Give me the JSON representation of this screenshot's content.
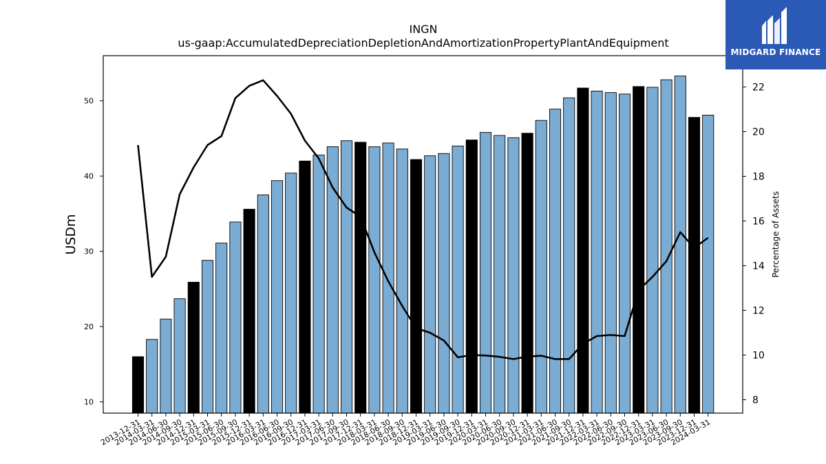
{
  "chart_data": {
    "type": "bar",
    "title": "INGN",
    "subtitle": "us-gaap:AccumulatedDepreciationDepletionAndAmortizationPropertyPlantAndEquipment",
    "ylabel": "USDm",
    "y2label": "Percentage of Assets",
    "ylim": [
      8.5,
      56
    ],
    "y2lim": [
      7.4,
      23.4
    ],
    "yticks": [
      10,
      20,
      30,
      40,
      50
    ],
    "y2ticks": [
      8,
      10,
      12,
      14,
      16,
      18,
      20,
      22
    ],
    "categories": [
      "2013-12-31",
      "2014-03-31",
      "2014-06-30",
      "2014-09-30",
      "2014-12-31",
      "2015-03-31",
      "2015-06-30",
      "2015-09-30",
      "2015-12-31",
      "2016-03-31",
      "2016-06-30",
      "2016-09-30",
      "2016-12-31",
      "2017-03-31",
      "2017-06-30",
      "2017-09-30",
      "2017-12-31",
      "2018-03-31",
      "2018-06-30",
      "2018-09-30",
      "2018-12-31",
      "2019-03-31",
      "2019-06-30",
      "2019-09-30",
      "2019-12-31",
      "2020-03-31",
      "2020-06-30",
      "2020-09-30",
      "2020-12-31",
      "2021-03-31",
      "2021-06-30",
      "2021-09-30",
      "2021-12-31",
      "2022-03-31",
      "2022-06-30",
      "2022-09-30",
      "2022-12-31",
      "2023-03-31",
      "2023-06-30",
      "2023-09-30",
      "2023-12-31",
      "2024-03-31"
    ],
    "series": [
      {
        "kind": "bar",
        "values": [
          16.0,
          18.3,
          21.0,
          23.7,
          25.9,
          28.8,
          31.1,
          33.9,
          35.6,
          37.5,
          39.4,
          40.4,
          42.0,
          42.8,
          43.9,
          44.7,
          44.5,
          43.9,
          44.4,
          43.6,
          42.2,
          42.7,
          43.0,
          44.0,
          44.8,
          45.8,
          45.4,
          45.1,
          45.7,
          47.4,
          48.9,
          50.4,
          51.7,
          51.3,
          51.1,
          50.9,
          51.9,
          51.8,
          52.8,
          53.3,
          47.8,
          48.1
        ],
        "highlight_color": "#000000",
        "color": "#7bacd3",
        "highlight_categories": [
          "2013-12-31",
          "2014-12-31",
          "2015-12-31",
          "2016-12-31",
          "2017-12-31",
          "2018-12-31",
          "2019-12-31",
          "2020-12-31",
          "2021-12-31",
          "2022-12-31",
          "2023-12-31"
        ]
      },
      {
        "kind": "line",
        "axis": "right",
        "color": "#000000",
        "values": [
          19.4,
          13.5,
          14.4,
          17.2,
          18.4,
          19.4,
          19.8,
          21.5,
          22.05,
          22.3,
          21.6,
          20.8,
          19.6,
          18.8,
          17.5,
          16.6,
          16.2,
          14.6,
          13.3,
          12.2,
          11.2,
          11.0,
          10.65,
          9.9,
          10.0,
          9.98,
          9.92,
          9.82,
          9.93,
          9.97,
          9.82,
          9.82,
          10.5,
          10.85,
          10.9,
          10.85,
          12.9,
          13.5,
          14.2,
          15.5,
          14.8,
          15.25
        ]
      }
    ],
    "grid": false
  },
  "branding": {
    "name": "MIDGARD FINANCE",
    "color": "#2b59b6"
  }
}
